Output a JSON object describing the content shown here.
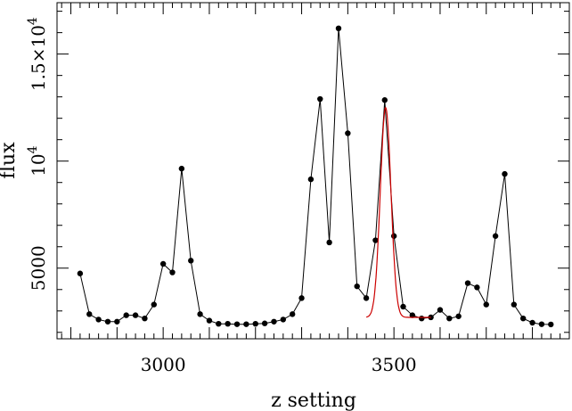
{
  "chart_data": {
    "type": "line",
    "title": "",
    "xlabel": "z setting",
    "ylabel": "flux",
    "xlim": [
      2770,
      3880
    ],
    "ylim": [
      1700,
      17400
    ],
    "x_ticks": [
      {
        "value": 3000,
        "label": "3000"
      },
      {
        "value": 3500,
        "label": "3500"
      }
    ],
    "y_ticks": [
      {
        "value": 5000,
        "label": "5000",
        "sup": ""
      },
      {
        "value": 10000,
        "label": "10",
        "sup": "4"
      },
      {
        "value": 15000,
        "label": "1.5×10",
        "sup": "4"
      }
    ],
    "grid": false,
    "series": [
      {
        "style": "line-with-markers",
        "color": "#000000",
        "x": [
          2820,
          2840,
          2860,
          2880,
          2900,
          2920,
          2940,
          2960,
          2980,
          3000,
          3020,
          3040,
          3060,
          3080,
          3100,
          3120,
          3140,
          3160,
          3180,
          3200,
          3220,
          3240,
          3260,
          3280,
          3300,
          3320,
          3340,
          3360,
          3380,
          3400,
          3420,
          3440,
          3460,
          3480,
          3500,
          3520,
          3540,
          3560,
          3580,
          3600,
          3620,
          3640,
          3660,
          3680,
          3700,
          3720,
          3740,
          3760,
          3780,
          3800,
          3820,
          3840
        ],
        "y": [
          4750,
          2850,
          2600,
          2500,
          2500,
          2800,
          2800,
          2650,
          3300,
          5200,
          4800,
          9650,
          5350,
          2850,
          2550,
          2400,
          2400,
          2380,
          2380,
          2400,
          2420,
          2500,
          2600,
          2850,
          3600,
          9150,
          12900,
          6200,
          16200,
          11300,
          4150,
          3600,
          6300,
          12850,
          6500,
          3200,
          2800,
          2650,
          2700,
          3050,
          2650,
          2750,
          4300,
          4100,
          3300,
          6500,
          9400,
          3300,
          2650,
          2450,
          2380,
          2370
        ]
      },
      {
        "style": "fit-curve",
        "color": "#cc0000",
        "model": "gaussian",
        "center": 3482,
        "sigma": 11.5,
        "amplitude": 9800,
        "baseline": 2700,
        "x_range": [
          3440,
          3580
        ]
      }
    ]
  }
}
